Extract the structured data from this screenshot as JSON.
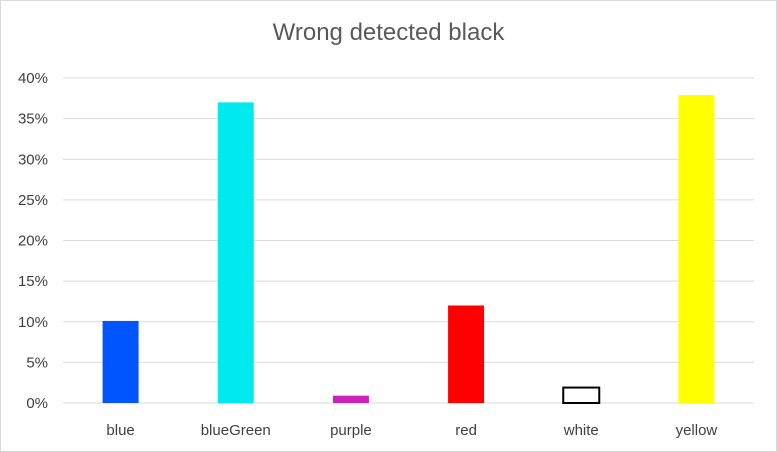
{
  "chart_data": {
    "type": "bar",
    "title": "Wrong detected black",
    "xlabel": "",
    "ylabel": "",
    "categories": [
      "blue",
      "blueGreen",
      "purple",
      "red",
      "white",
      "yellow"
    ],
    "values": [
      10.1,
      37.0,
      0.9,
      12.0,
      1.9,
      37.9
    ],
    "colors": [
      "#0055ff",
      "#00e9ee",
      "#cc22bb",
      "#ff0000",
      "#ffffff",
      "#ffff00"
    ],
    "outline": [
      "none",
      "none",
      "none",
      "none",
      "#000000",
      "none"
    ],
    "ylim": [
      0,
      40
    ],
    "yticks": [
      0,
      5,
      10,
      15,
      20,
      25,
      30,
      35,
      40
    ],
    "ytick_labels": [
      "0%",
      "5%",
      "10%",
      "15%",
      "20%",
      "25%",
      "30%",
      "35%",
      "40%"
    ],
    "grid": true,
    "legend": "none"
  }
}
